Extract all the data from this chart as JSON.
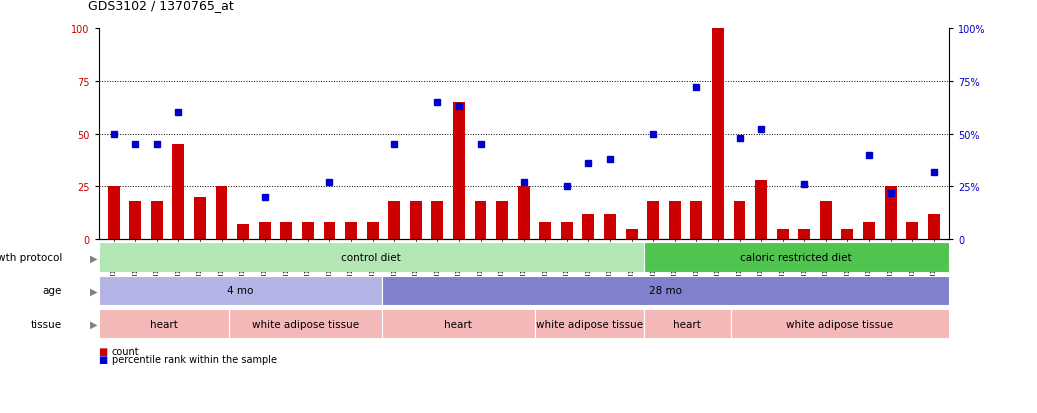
{
  "title": "GDS3102 / 1370765_at",
  "samples": [
    "GSM154903",
    "GSM154904",
    "GSM154905",
    "GSM154906",
    "GSM154907",
    "GSM154908",
    "GSM154920",
    "GSM154921",
    "GSM154922",
    "GSM154924",
    "GSM154925",
    "GSM154932",
    "GSM154933",
    "GSM154896",
    "GSM154897",
    "GSM154898",
    "GSM154899",
    "GSM154900",
    "GSM154901",
    "GSM154902",
    "GSM154918",
    "GSM154919",
    "GSM154929",
    "GSM154930",
    "GSM154931",
    "GSM154909",
    "GSM154910",
    "GSM154911",
    "GSM154912",
    "GSM154913",
    "GSM154914",
    "GSM154915",
    "GSM154916",
    "GSM154917",
    "GSM154923",
    "GSM154926",
    "GSM154927",
    "GSM154928",
    "GSM154934"
  ],
  "bar_values": [
    25,
    18,
    18,
    45,
    20,
    25,
    7,
    8,
    8,
    8,
    8,
    8,
    8,
    18,
    18,
    18,
    65,
    18,
    18,
    25,
    8,
    8,
    12,
    12,
    5,
    18,
    18,
    18,
    100,
    18,
    28,
    5,
    5,
    18,
    5,
    8,
    25,
    8,
    12
  ],
  "blue_values": [
    50,
    45,
    45,
    60,
    -1,
    -1,
    -1,
    20,
    -1,
    -1,
    27,
    -1,
    -1,
    45,
    -1,
    65,
    63,
    45,
    -1,
    27,
    -1,
    25,
    36,
    38,
    -1,
    50,
    -1,
    72,
    -1,
    48,
    52,
    -1,
    26,
    -1,
    -1,
    40,
    22,
    -1,
    32
  ],
  "growth_protocol_regions": [
    {
      "label": "control diet",
      "start": 0,
      "end": 25,
      "color": "#b2e6b2"
    },
    {
      "label": "caloric restricted diet",
      "start": 25,
      "end": 39,
      "color": "#4fc44f"
    }
  ],
  "age_regions": [
    {
      "label": "4 mo",
      "start": 0,
      "end": 13,
      "color": "#b3b3e6"
    },
    {
      "label": "28 mo",
      "start": 13,
      "end": 39,
      "color": "#8080cc"
    }
  ],
  "tissue_regions": [
    {
      "label": "heart",
      "start": 0,
      "end": 6,
      "color": "#f4b8b8"
    },
    {
      "label": "white adipose tissue",
      "start": 6,
      "end": 13,
      "color": "#f4b8b8"
    },
    {
      "label": "heart",
      "start": 13,
      "end": 20,
      "color": "#f4b8b8"
    },
    {
      "label": "white adipose tissue",
      "start": 20,
      "end": 25,
      "color": "#f4b8b8"
    },
    {
      "label": "heart",
      "start": 25,
      "end": 29,
      "color": "#f4b8b8"
    },
    {
      "label": "white adipose tissue",
      "start": 29,
      "end": 39,
      "color": "#f4b8b8"
    }
  ],
  "bar_color": "#CC0000",
  "blue_color": "#0000CC",
  "yticks": [
    0,
    25,
    50,
    75,
    100
  ],
  "grid_values": [
    25,
    50,
    75
  ]
}
